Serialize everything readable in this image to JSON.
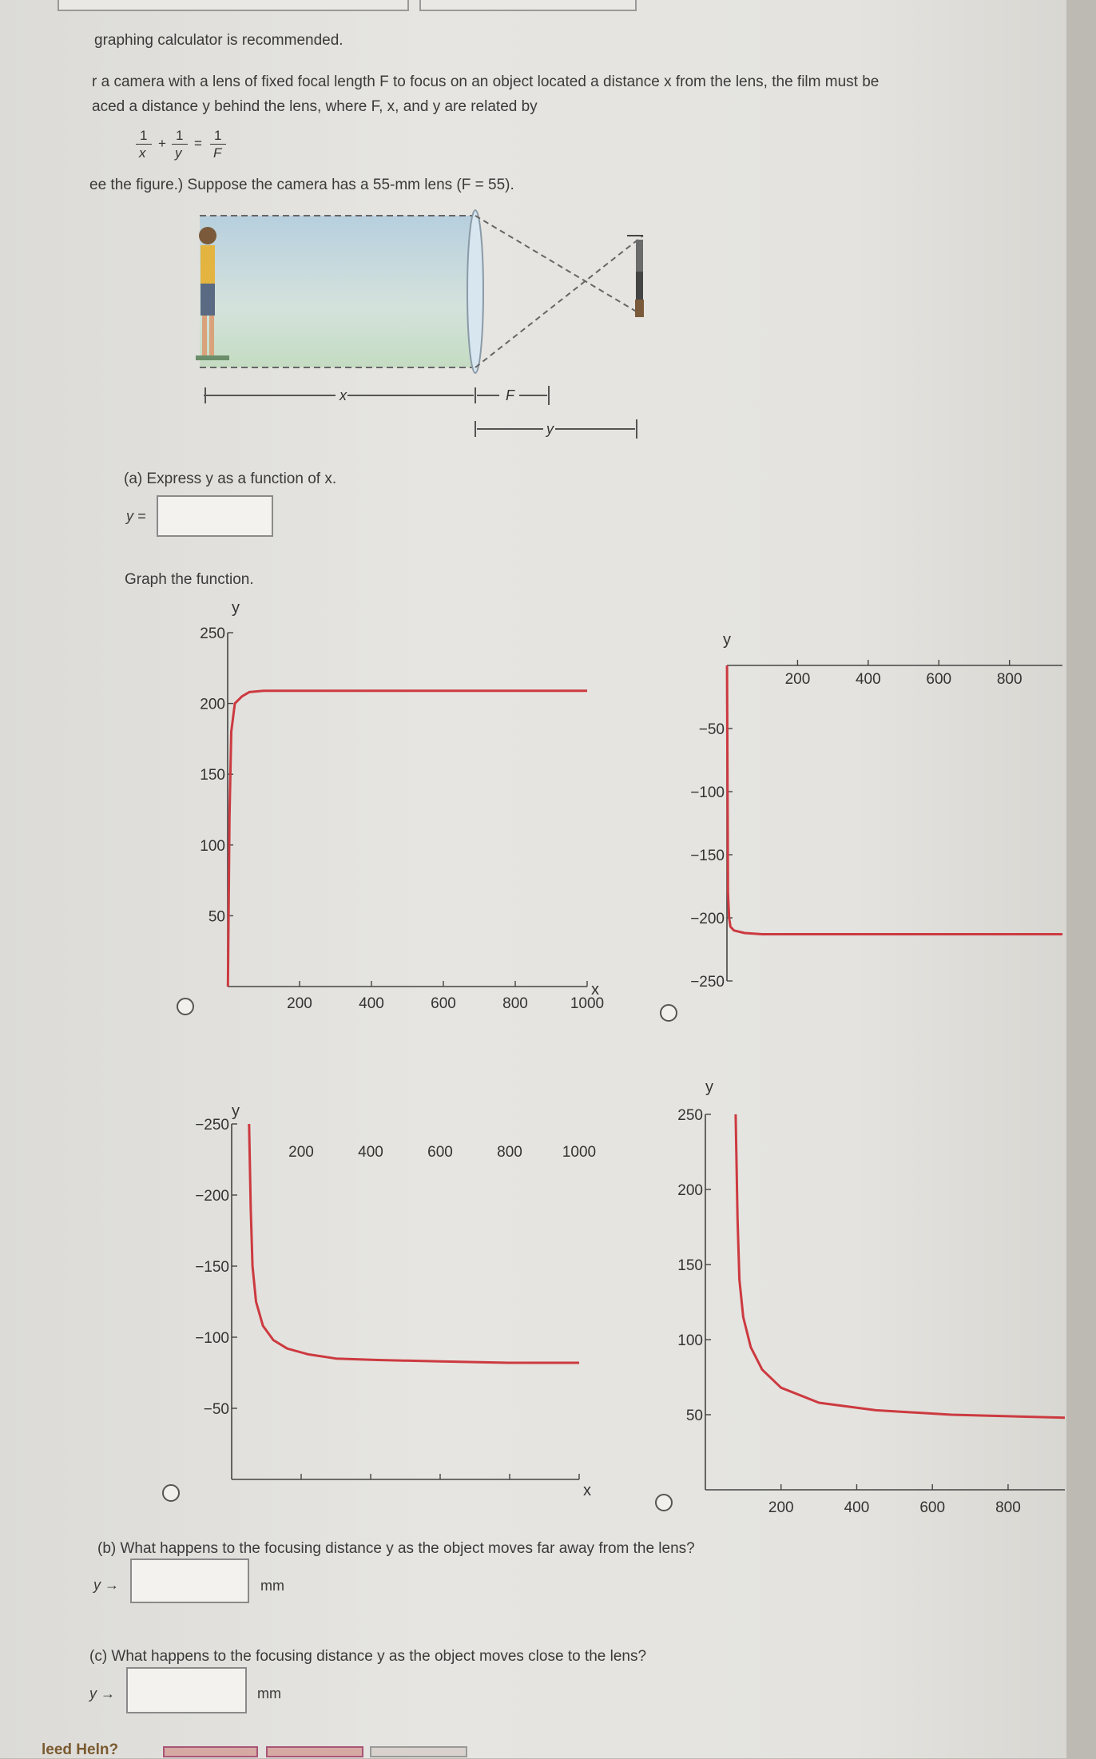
{
  "intro": {
    "line0": "graphing calculator is recommended.",
    "line1": "r a camera with a lens of fixed focal length F to focus on an object located a distance x from the lens, the film must be",
    "line2": "aced a distance y behind the lens, where F, x, and y are related by",
    "eq_lhs1_num": "1",
    "eq_lhs1_den": "x",
    "eq_plus": "+",
    "eq_lhs2_num": "1",
    "eq_lhs2_den": "y",
    "eq_eq": "=",
    "eq_rhs_num": "1",
    "eq_rhs_den": "F",
    "line3": "ee the figure.) Suppose the camera has a 55-mm lens (F = 55)."
  },
  "figure": {
    "label_x": "x",
    "label_F": "F",
    "label_y": "y"
  },
  "part_a": {
    "question": "(a) Express y as a function of x.",
    "answer_label": "y =",
    "answer_value": "",
    "graph_prompt": "Graph the function."
  },
  "graphs": [
    {
      "chart_data": {
        "type": "line",
        "xlabel": "x",
        "ylabel": "y",
        "xlim": [
          0,
          1000
        ],
        "ylim": [
          0,
          250
        ],
        "xticks": [
          "200",
          "400",
          "600",
          "800",
          "1000"
        ],
        "yticks": [
          "50",
          "100",
          "150",
          "200",
          "250"
        ],
        "series": [
          {
            "x": [
              0.7,
              5,
              10,
              20,
              40,
              60,
              100,
              200,
              400,
              700,
              1000
            ],
            "y": [
              0,
              120,
              180,
              200,
              205,
              208,
              209,
              209,
              209,
              209,
              209
            ],
            "color": "#cc3a40"
          }
        ]
      }
    },
    {
      "chart_data": {
        "type": "line",
        "xlabel": "x",
        "ylabel": "y",
        "xlim": [
          0,
          950
        ],
        "ylim": [
          -250,
          0
        ],
        "xticks": [
          "200",
          "400",
          "600",
          "800"
        ],
        "yticks": [
          "-50",
          "-100",
          "-150",
          "-200",
          "-250"
        ],
        "series": [
          {
            "x": [
              0.3,
              3,
              6,
              10,
              20,
              50,
              100,
              300,
              600,
              950
            ],
            "y": [
              0,
              -180,
              -200,
              -207,
              -210,
              -212,
              -213,
              -213,
              -213,
              -213
            ],
            "color": "#cc3a40"
          }
        ]
      }
    },
    {
      "chart_data": {
        "type": "line",
        "xlabel": "x",
        "ylabel": "y",
        "xlim": [
          0,
          1000
        ],
        "ylim": [
          -250,
          0
        ],
        "xticks": [
          "200",
          "400",
          "600",
          "800",
          "1000"
        ],
        "yticks": [
          "-50",
          "-100",
          "-150",
          "-200",
          "-250"
        ],
        "series": [
          {
            "x": [
              50,
              55,
              60,
              70,
              90,
              120,
              160,
              220,
              300,
              420,
              600,
              800,
              1000
            ],
            "y": [
              -250,
              -190,
              -150,
              -125,
              -108,
              -98,
              -92,
              -88,
              -85,
              -84,
              -83,
              -82,
              -82
            ],
            "color": "#cc3a40"
          }
        ]
      }
    },
    {
      "chart_data": {
        "type": "line",
        "xlabel": "x",
        "ylabel": "y",
        "xlim": [
          0,
          950
        ],
        "ylim": [
          0,
          250
        ],
        "xticks": [
          "200",
          "400",
          "600",
          "800"
        ],
        "yticks": [
          "50",
          "100",
          "150",
          "200",
          "250"
        ],
        "series": [
          {
            "x": [
              80,
              85,
              90,
              100,
              120,
              150,
              200,
              300,
              450,
              650,
              950
            ],
            "y": [
              250,
              180,
              140,
              115,
              95,
              80,
              68,
              58,
              53,
              50,
              48
            ],
            "color": "#cc3a40"
          }
        ]
      }
    }
  ],
  "part_b": {
    "question": "(b) What happens to the focusing distance y as the object moves far away from the lens?",
    "arrow_label": "y →",
    "answer_value": "",
    "unit": "mm"
  },
  "part_c": {
    "question": "(c) What happens to the focusing distance y as the object moves close to the lens?",
    "arrow_label": "y →",
    "answer_value": "",
    "unit": "mm"
  },
  "footer": {
    "need_help": "leed Heln?"
  }
}
